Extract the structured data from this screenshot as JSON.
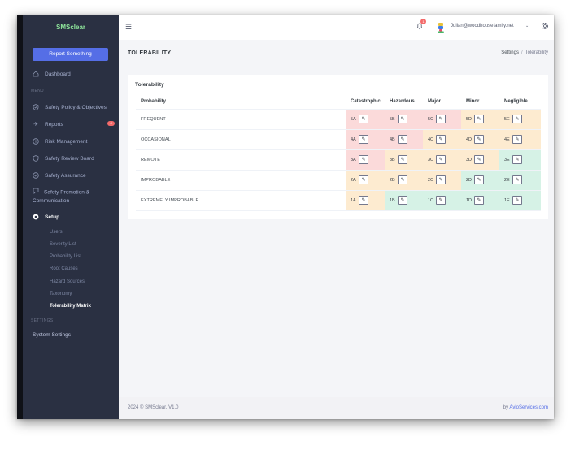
{
  "app": {
    "brand": "SMSclear",
    "report_button": "Report Something"
  },
  "sidebar": {
    "dashboard": "Dashboard",
    "menu_title": "MENU",
    "items": [
      {
        "label": "Safety Policy & Objectives",
        "icon": "shield-check-icon"
      },
      {
        "label": "Reports",
        "icon": "plane-icon",
        "badge": "4"
      },
      {
        "label": "Risk Management",
        "icon": "info-circle-icon"
      },
      {
        "label": "Safety Review Board",
        "icon": "shield-icon"
      },
      {
        "label": "Safety Assurance",
        "icon": "check-circle-icon"
      },
      {
        "label": "Safety Promotion & Communication",
        "icon": "chat-icon"
      },
      {
        "label": "Setup",
        "icon": "gear-icon"
      }
    ],
    "setup_items": [
      "Users",
      "Severity List",
      "Probability List",
      "Root Causes",
      "Hazard Sources",
      "Taxonomy",
      "Tolerability Matrix"
    ],
    "settings_title": "SETTINGS",
    "system_settings": "System Settings"
  },
  "topbar": {
    "notification_count": "1",
    "user_email": "Julian@woodhousefamily.net"
  },
  "page": {
    "title": "TOLERABILITY",
    "breadcrumb": [
      "Settings",
      "Tolerability"
    ]
  },
  "card": {
    "title": "Tolerability",
    "columns": [
      "Probability",
      "Catastrophic",
      "Hazardous",
      "Major",
      "Minor",
      "Negligible"
    ],
    "rows": [
      {
        "label": "FREQUENT",
        "cells": [
          {
            "code": "5A",
            "level": "red"
          },
          {
            "code": "5B",
            "level": "red"
          },
          {
            "code": "5C",
            "level": "red"
          },
          {
            "code": "5D",
            "level": "amber"
          },
          {
            "code": "5E",
            "level": "amber"
          }
        ]
      },
      {
        "label": "OCCASIONAL",
        "cells": [
          {
            "code": "4A",
            "level": "red"
          },
          {
            "code": "4B",
            "level": "red"
          },
          {
            "code": "4C",
            "level": "amber"
          },
          {
            "code": "4D",
            "level": "amber"
          },
          {
            "code": "4E",
            "level": "amber"
          }
        ]
      },
      {
        "label": "REMOTE",
        "cells": [
          {
            "code": "3A",
            "level": "red"
          },
          {
            "code": "3B",
            "level": "amber"
          },
          {
            "code": "3C",
            "level": "amber"
          },
          {
            "code": "3D",
            "level": "amber"
          },
          {
            "code": "3E",
            "level": "green"
          }
        ]
      },
      {
        "label": "IMPROBABLE",
        "cells": [
          {
            "code": "2A",
            "level": "amber"
          },
          {
            "code": "2B",
            "level": "amber"
          },
          {
            "code": "2C",
            "level": "amber"
          },
          {
            "code": "2D",
            "level": "green"
          },
          {
            "code": "2E",
            "level": "green"
          }
        ]
      },
      {
        "label": "EXTREMELY IMPROBABLE",
        "cells": [
          {
            "code": "1A",
            "level": "amber"
          },
          {
            "code": "1B",
            "level": "green"
          },
          {
            "code": "1C",
            "level": "green"
          },
          {
            "code": "1D",
            "level": "green"
          },
          {
            "code": "1E",
            "level": "green"
          }
        ]
      }
    ]
  },
  "footer": {
    "copyright": "2024 © SMSclear. V1.0",
    "by_prefix": "by ",
    "by_link": "AvioServices.com"
  },
  "colors": {
    "sidebar": "#2a3042",
    "accent": "#556ee6",
    "red": "#fbdada",
    "amber": "#fdebd0",
    "green": "#d6f2e6"
  }
}
